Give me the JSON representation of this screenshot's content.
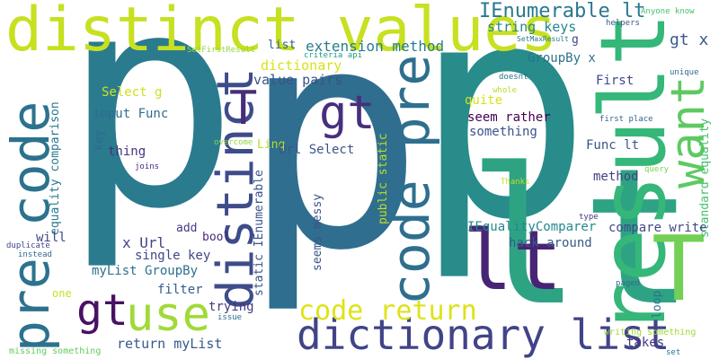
{
  "words": [
    {
      "text": "p",
      "color": "#2a7b8e"
    },
    {
      "text": "p",
      "color": "#2f6e8e"
    },
    {
      "text": "p",
      "color": "#278c8a"
    },
    {
      "text": "lt",
      "color": "#2ea384"
    },
    {
      "text": "result",
      "color": "#35b779"
    },
    {
      "text": "distinct values",
      "color": "#c7e020"
    },
    {
      "text": "code pre",
      "color": "#2e6f8e"
    },
    {
      "text": "pre code",
      "color": "#2c728e"
    },
    {
      "text": "distinct",
      "color": "#3e4c8a"
    },
    {
      "text": "T",
      "color": "#472c7a"
    },
    {
      "text": "gt",
      "color": "#472f7d"
    },
    {
      "text": "want",
      "color": "#5ec962"
    },
    {
      "text": "lt",
      "color": "#482475"
    },
    {
      "text": "T",
      "color": "#73d056"
    },
    {
      "text": "gt",
      "color": "#471164"
    },
    {
      "text": "use",
      "color": "#a0da39"
    },
    {
      "text": "dictionary list",
      "color": "#414487"
    },
    {
      "text": "code return",
      "color": "#dde318"
    },
    {
      "text": "IEnumerable lt",
      "color": "#2a788e"
    },
    {
      "text": "string keys",
      "color": "#25858e"
    },
    {
      "text": "extension method",
      "color": "#287d8e"
    },
    {
      "text": "list",
      "color": "#34618d"
    },
    {
      "text": "dictionary",
      "color": "#d8e219"
    },
    {
      "text": "value pairs",
      "color": "#3b528b"
    },
    {
      "text": "gt x",
      "color": "#38598c"
    },
    {
      "text": "GroupBy x",
      "color": "#2c728e"
    },
    {
      "text": "First",
      "color": "#3e4989"
    },
    {
      "text": "Select g",
      "color": "#d0e11c"
    },
    {
      "text": "input Func",
      "color": "#2f6c8e"
    },
    {
      "text": "quite",
      "color": "#d5e21a"
    },
    {
      "text": "seem rather",
      "color": "#440154"
    },
    {
      "text": "something",
      "color": "#3b528b"
    },
    {
      "text": "Func lt",
      "color": "#3a548c"
    },
    {
      "text": "method",
      "color": "#424186"
    },
    {
      "text": "equality comparison",
      "color": "#2a788e"
    },
    {
      "text": "public static",
      "color": "#bddf26"
    },
    {
      "text": "static IEnumerable",
      "color": "#3b528b"
    },
    {
      "text": "standard equality",
      "color": "#46c06f"
    },
    {
      "text": "Linq",
      "color": "#b8de29"
    },
    {
      "text": "Url Select",
      "color": "#3a548c"
    },
    {
      "text": "thing",
      "color": "#46327e"
    },
    {
      "text": "key",
      "color": "#31688e"
    },
    {
      "text": "x Url",
      "color": "#414487"
    },
    {
      "text": "add",
      "color": "#443a83"
    },
    {
      "text": "bool",
      "color": "#482878"
    },
    {
      "text": "single key",
      "color": "#3f4788"
    },
    {
      "text": "will",
      "color": "#3f4788"
    },
    {
      "text": "seems messy",
      "color": "#3b528b"
    },
    {
      "text": "IEqualityComparer",
      "color": "#24878e"
    },
    {
      "text": "hack around",
      "color": "#375a8c"
    },
    {
      "text": "compare write",
      "color": "#3f4788"
    },
    {
      "text": "myList GroupBy",
      "color": "#2d708e"
    },
    {
      "text": "filter",
      "color": "#365c8d"
    },
    {
      "text": "loop",
      "color": "#2b748e"
    },
    {
      "text": "trying",
      "color": "#453882"
    },
    {
      "text": "return myList",
      "color": "#38598c"
    },
    {
      "text": "takes",
      "color": "#453882"
    },
    {
      "text": "g",
      "color": "#3f4788"
    },
    {
      "text": "helpers",
      "color": "#39568c"
    },
    {
      "text": "Anyone know",
      "color": "#46c06f"
    },
    {
      "text": "SetFirstResult",
      "color": "#93d741"
    },
    {
      "text": "criteria api",
      "color": "#1f988b"
    },
    {
      "text": "SetMaxResult",
      "color": "#2a788e"
    },
    {
      "text": "unique",
      "color": "#31688e"
    },
    {
      "text": "doesnt",
      "color": "#2c728e"
    },
    {
      "text": "whole",
      "color": "#b5de2b"
    },
    {
      "text": "first place",
      "color": "#33638d"
    },
    {
      "text": "overcome",
      "color": "#90d743"
    },
    {
      "text": "joins",
      "color": "#482878"
    },
    {
      "text": "query",
      "color": "#7ad151"
    },
    {
      "text": "Thanks",
      "color": "#c2df23"
    },
    {
      "text": "type",
      "color": "#453882"
    },
    {
      "text": "paged",
      "color": "#31688e"
    },
    {
      "text": "duplicate",
      "color": "#3f4788"
    },
    {
      "text": "instead",
      "color": "#31688e"
    },
    {
      "text": "one",
      "color": "#c8e020"
    },
    {
      "text": "issue",
      "color": "#2d708e"
    },
    {
      "text": "missing something",
      "color": "#63cb5f"
    },
    {
      "text": "writing something",
      "color": "#a2da37"
    },
    {
      "text": "set",
      "color": "#2d708e"
    }
  ]
}
